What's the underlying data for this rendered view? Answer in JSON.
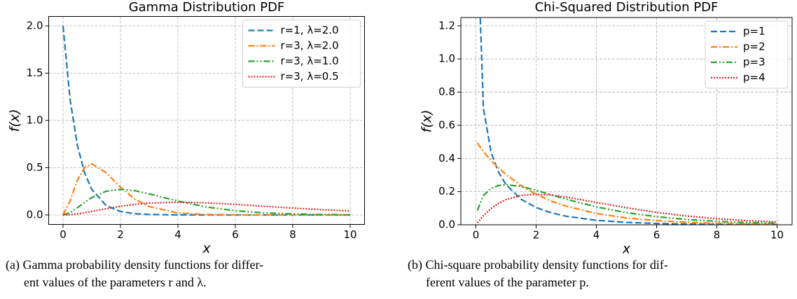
{
  "chart_data": [
    {
      "type": "line",
      "title": "Gamma Distribution PDF",
      "xlabel": "x",
      "ylabel": "f(x)",
      "x": [
        0,
        0.25,
        0.5,
        0.75,
        1,
        1.5,
        2,
        2.5,
        3,
        4,
        5,
        6,
        7,
        8,
        9,
        10
      ],
      "series": [
        {
          "name": "r=1, λ=2.0",
          "color": "#1f77b4",
          "linestyle": "dashed",
          "values": [
            2,
            1.213,
            0.736,
            0.446,
            0.271,
            0.0996,
            0.0366,
            0.0135,
            0.005,
            0.0007,
            0.0001,
            0,
            0,
            0,
            0,
            0
          ]
        },
        {
          "name": "r=3, λ=2.0",
          "color": "#ff7f0e",
          "linestyle": "dashdot",
          "values": [
            0,
            0.152,
            0.368,
            0.502,
            0.541,
            0.448,
            0.293,
            0.168,
            0.089,
            0.021,
            0.0045,
            0.0009,
            0.0002,
            0,
            0,
            0
          ]
        },
        {
          "name": "r=3, λ=1.0",
          "color": "#2ca02c",
          "linestyle": "dashdotdot",
          "values": [
            0,
            0.024,
            0.076,
            0.133,
            0.184,
            0.251,
            0.271,
            0.257,
            0.224,
            0.147,
            0.084,
            0.045,
            0.022,
            0.011,
            0.005,
            0.0023
          ]
        },
        {
          "name": "r=3, λ=0.5",
          "color": "#d62728",
          "linestyle": "dotted",
          "values": [
            0,
            0.0034,
            0.012,
            0.024,
            0.038,
            0.066,
            0.092,
            0.112,
            0.126,
            0.135,
            0.128,
            0.112,
            0.092,
            0.073,
            0.056,
            0.042
          ]
        }
      ],
      "xlim": [
        -0.5,
        10.5
      ],
      "ylim": [
        -0.1,
        2.1
      ],
      "xticks": [
        0,
        2,
        4,
        6,
        8,
        10
      ],
      "yticks": [
        {
          "value": 0,
          "label": "0.0"
        },
        {
          "value": 0.5,
          "label": "0.5"
        },
        {
          "value": 1,
          "label": "1.0"
        },
        {
          "value": 1.5,
          "label": "1.5"
        },
        {
          "value": 2,
          "label": "2.0"
        }
      ],
      "grid": true,
      "legend": "upper right",
      "caption": [
        "(a) Gamma probability density functions for differ-",
        "ent values of the parameters r and λ."
      ]
    },
    {
      "type": "line",
      "title": "Chi-Squared Distribution PDF",
      "xlabel": "x",
      "ylabel": "f(x)",
      "x": [
        0.05,
        0.25,
        0.5,
        0.75,
        1,
        1.5,
        2,
        2.5,
        3,
        4,
        5,
        6,
        7,
        8,
        9,
        10
      ],
      "series": [
        {
          "name": "p=1",
          "color": "#1f77b4",
          "linestyle": "dashed",
          "values": [
            1.74,
            0.704,
            0.439,
            0.317,
            0.242,
            0.154,
            0.104,
            0.0723,
            0.0514,
            0.027,
            0.0146,
            0.0081,
            0.0046,
            0.0026,
            0.0015,
            0.00085
          ]
        },
        {
          "name": "p=2",
          "color": "#ff7f0e",
          "linestyle": "dashdot",
          "values": [
            0.494,
            0.441,
            0.389,
            0.344,
            0.303,
            0.236,
            0.184,
            0.143,
            0.112,
            0.068,
            0.041,
            0.025,
            0.015,
            0.009,
            0.0056,
            0.0034
          ]
        },
        {
          "name": "p=3",
          "color": "#2ca02c",
          "linestyle": "dashdotdot",
          "values": [
            0.087,
            0.176,
            0.22,
            0.237,
            0.242,
            0.231,
            0.208,
            0.181,
            0.154,
            0.108,
            0.073,
            0.0487,
            0.0319,
            0.0207,
            0.0133,
            0.0085
          ]
        },
        {
          "name": "p=4",
          "color": "#d62728",
          "linestyle": "dotted",
          "values": [
            0.0122,
            0.0552,
            0.0974,
            0.129,
            0.152,
            0.177,
            0.184,
            0.179,
            0.167,
            0.135,
            0.103,
            0.0747,
            0.0529,
            0.0366,
            0.025,
            0.0168
          ]
        }
      ],
      "xlim": [
        -0.5,
        10.5
      ],
      "ylim": [
        0,
        1.25
      ],
      "xticks": [
        0,
        2,
        4,
        6,
        8,
        10
      ],
      "yticks": [
        {
          "value": 0,
          "label": "0.0"
        },
        {
          "value": 0.2,
          "label": "0.2"
        },
        {
          "value": 0.4,
          "label": "0.4"
        },
        {
          "value": 0.6,
          "label": "0.6"
        },
        {
          "value": 0.8,
          "label": "0.8"
        },
        {
          "value": 1,
          "label": "1.0"
        },
        {
          "value": 1.2,
          "label": "1.2"
        }
      ],
      "grid": true,
      "legend": "upper right",
      "caption": [
        "(b) Chi-square probability density functions for dif-",
        "ferent values of the parameter p."
      ]
    }
  ]
}
